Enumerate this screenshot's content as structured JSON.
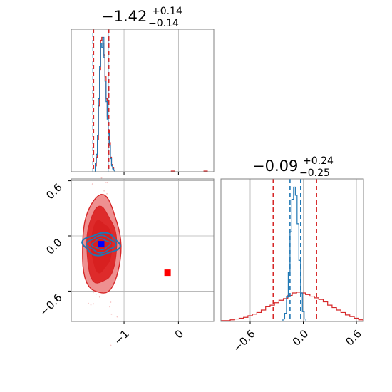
{
  "colors": {
    "red": "#d62728",
    "blue": "#1f77b4",
    "red_fill_dark": "#de2b2b",
    "red_fill_light": "#ee9090",
    "grid": "#b0b0b0",
    "frame": "#808080"
  },
  "chart_data": [
    {
      "panel": "top-left",
      "type": "histogram",
      "title": {
        "value": "−1.42",
        "plus": "+0.14",
        "minus": "−0.14"
      },
      "xlim": [
        -1.97,
        0.65
      ],
      "grid": true,
      "quantile_lines": [
        -1.56,
        -1.28
      ],
      "series": [
        {
          "color": "red",
          "centers": [
            -1.52,
            -1.5,
            -1.48,
            -1.46,
            -1.44,
            -1.42,
            -1.4,
            -1.38,
            -1.36,
            -1.34,
            -1.32,
            -1.3,
            -1.28,
            -1.26,
            -1.24,
            -1.22,
            -1.2,
            -1.18
          ],
          "counts": [
            4,
            10,
            22,
            45,
            70,
            90,
            92,
            88,
            80,
            65,
            50,
            38,
            28,
            20,
            10,
            5,
            3,
            1
          ]
        },
        {
          "color": "blue",
          "centers": [
            -1.52,
            -1.5,
            -1.48,
            -1.46,
            -1.44,
            -1.42,
            -1.4,
            -1.38,
            -1.36,
            -1.34,
            -1.32,
            -1.3,
            -1.28,
            -1.26,
            -1.24,
            -1.22,
            -1.2,
            -1.18
          ],
          "counts": [
            6,
            12,
            25,
            50,
            72,
            88,
            85,
            92,
            78,
            62,
            48,
            36,
            26,
            18,
            9,
            4,
            2,
            1
          ]
        }
      ],
      "outliers": [
        -0.1,
        0.5
      ]
    },
    {
      "panel": "bottom-left",
      "type": "contour",
      "xlim": [
        -1.97,
        0.65
      ],
      "ylim": [
        -0.93,
        0.62
      ],
      "xticks": [
        -1,
        0
      ],
      "xtick_labels": [
        "−1",
        "0"
      ],
      "yticks": [
        0.6,
        0.0,
        -0.6
      ],
      "ytick_labels": [
        "0.6",
        "0.0",
        "−0.6"
      ],
      "grid": true,
      "red_markers": [
        {
          "x": -0.2,
          "y": -0.4
        }
      ],
      "blue_markers": [
        {
          "x": -1.42,
          "y": -0.09
        }
      ],
      "red_center": {
        "x": -1.42,
        "y": -0.11
      },
      "blue_center": {
        "x": -1.42,
        "y": -0.09
      }
    },
    {
      "panel": "bottom-right",
      "type": "histogram",
      "title": {
        "value": "−0.09",
        "plus": "+0.24",
        "minus": "−0.25"
      },
      "xlim": [
        -0.93,
        0.68
      ],
      "xticks": [
        -0.6,
        0.0,
        0.6
      ],
      "xtick_labels": [
        "−0.6",
        "0.0",
        "0.6"
      ],
      "grid": true,
      "red_quantile_lines": [
        -0.34,
        0.15
      ],
      "blue_quantile_lines": [
        -0.15,
        -0.03
      ],
      "series": [
        {
          "color": "red",
          "centers": [
            -0.9,
            -0.85,
            -0.8,
            -0.75,
            -0.7,
            -0.65,
            -0.6,
            -0.55,
            -0.5,
            -0.45,
            -0.4,
            -0.35,
            -0.3,
            -0.25,
            -0.2,
            -0.15,
            -0.1,
            -0.05,
            0.0,
            0.05,
            0.1,
            0.15,
            0.2,
            0.25,
            0.3,
            0.35,
            0.4,
            0.45,
            0.5,
            0.55,
            0.6,
            0.65
          ],
          "counts": [
            1,
            1,
            2,
            3,
            4,
            5,
            7,
            9,
            11,
            14,
            18,
            20,
            23,
            26,
            28,
            32,
            35,
            36,
            35,
            33,
            31,
            29,
            27,
            24,
            20,
            17,
            14,
            11,
            8,
            6,
            4,
            2
          ]
        },
        {
          "color": "blue",
          "centers": [
            -0.22,
            -0.2,
            -0.18,
            -0.16,
            -0.14,
            -0.12,
            -0.1,
            -0.08,
            -0.06,
            -0.04,
            -0.02,
            0.0,
            0.02
          ],
          "counts": [
            3,
            10,
            30,
            60,
            110,
            150,
            165,
            155,
            120,
            75,
            35,
            12,
            3
          ]
        }
      ]
    }
  ]
}
